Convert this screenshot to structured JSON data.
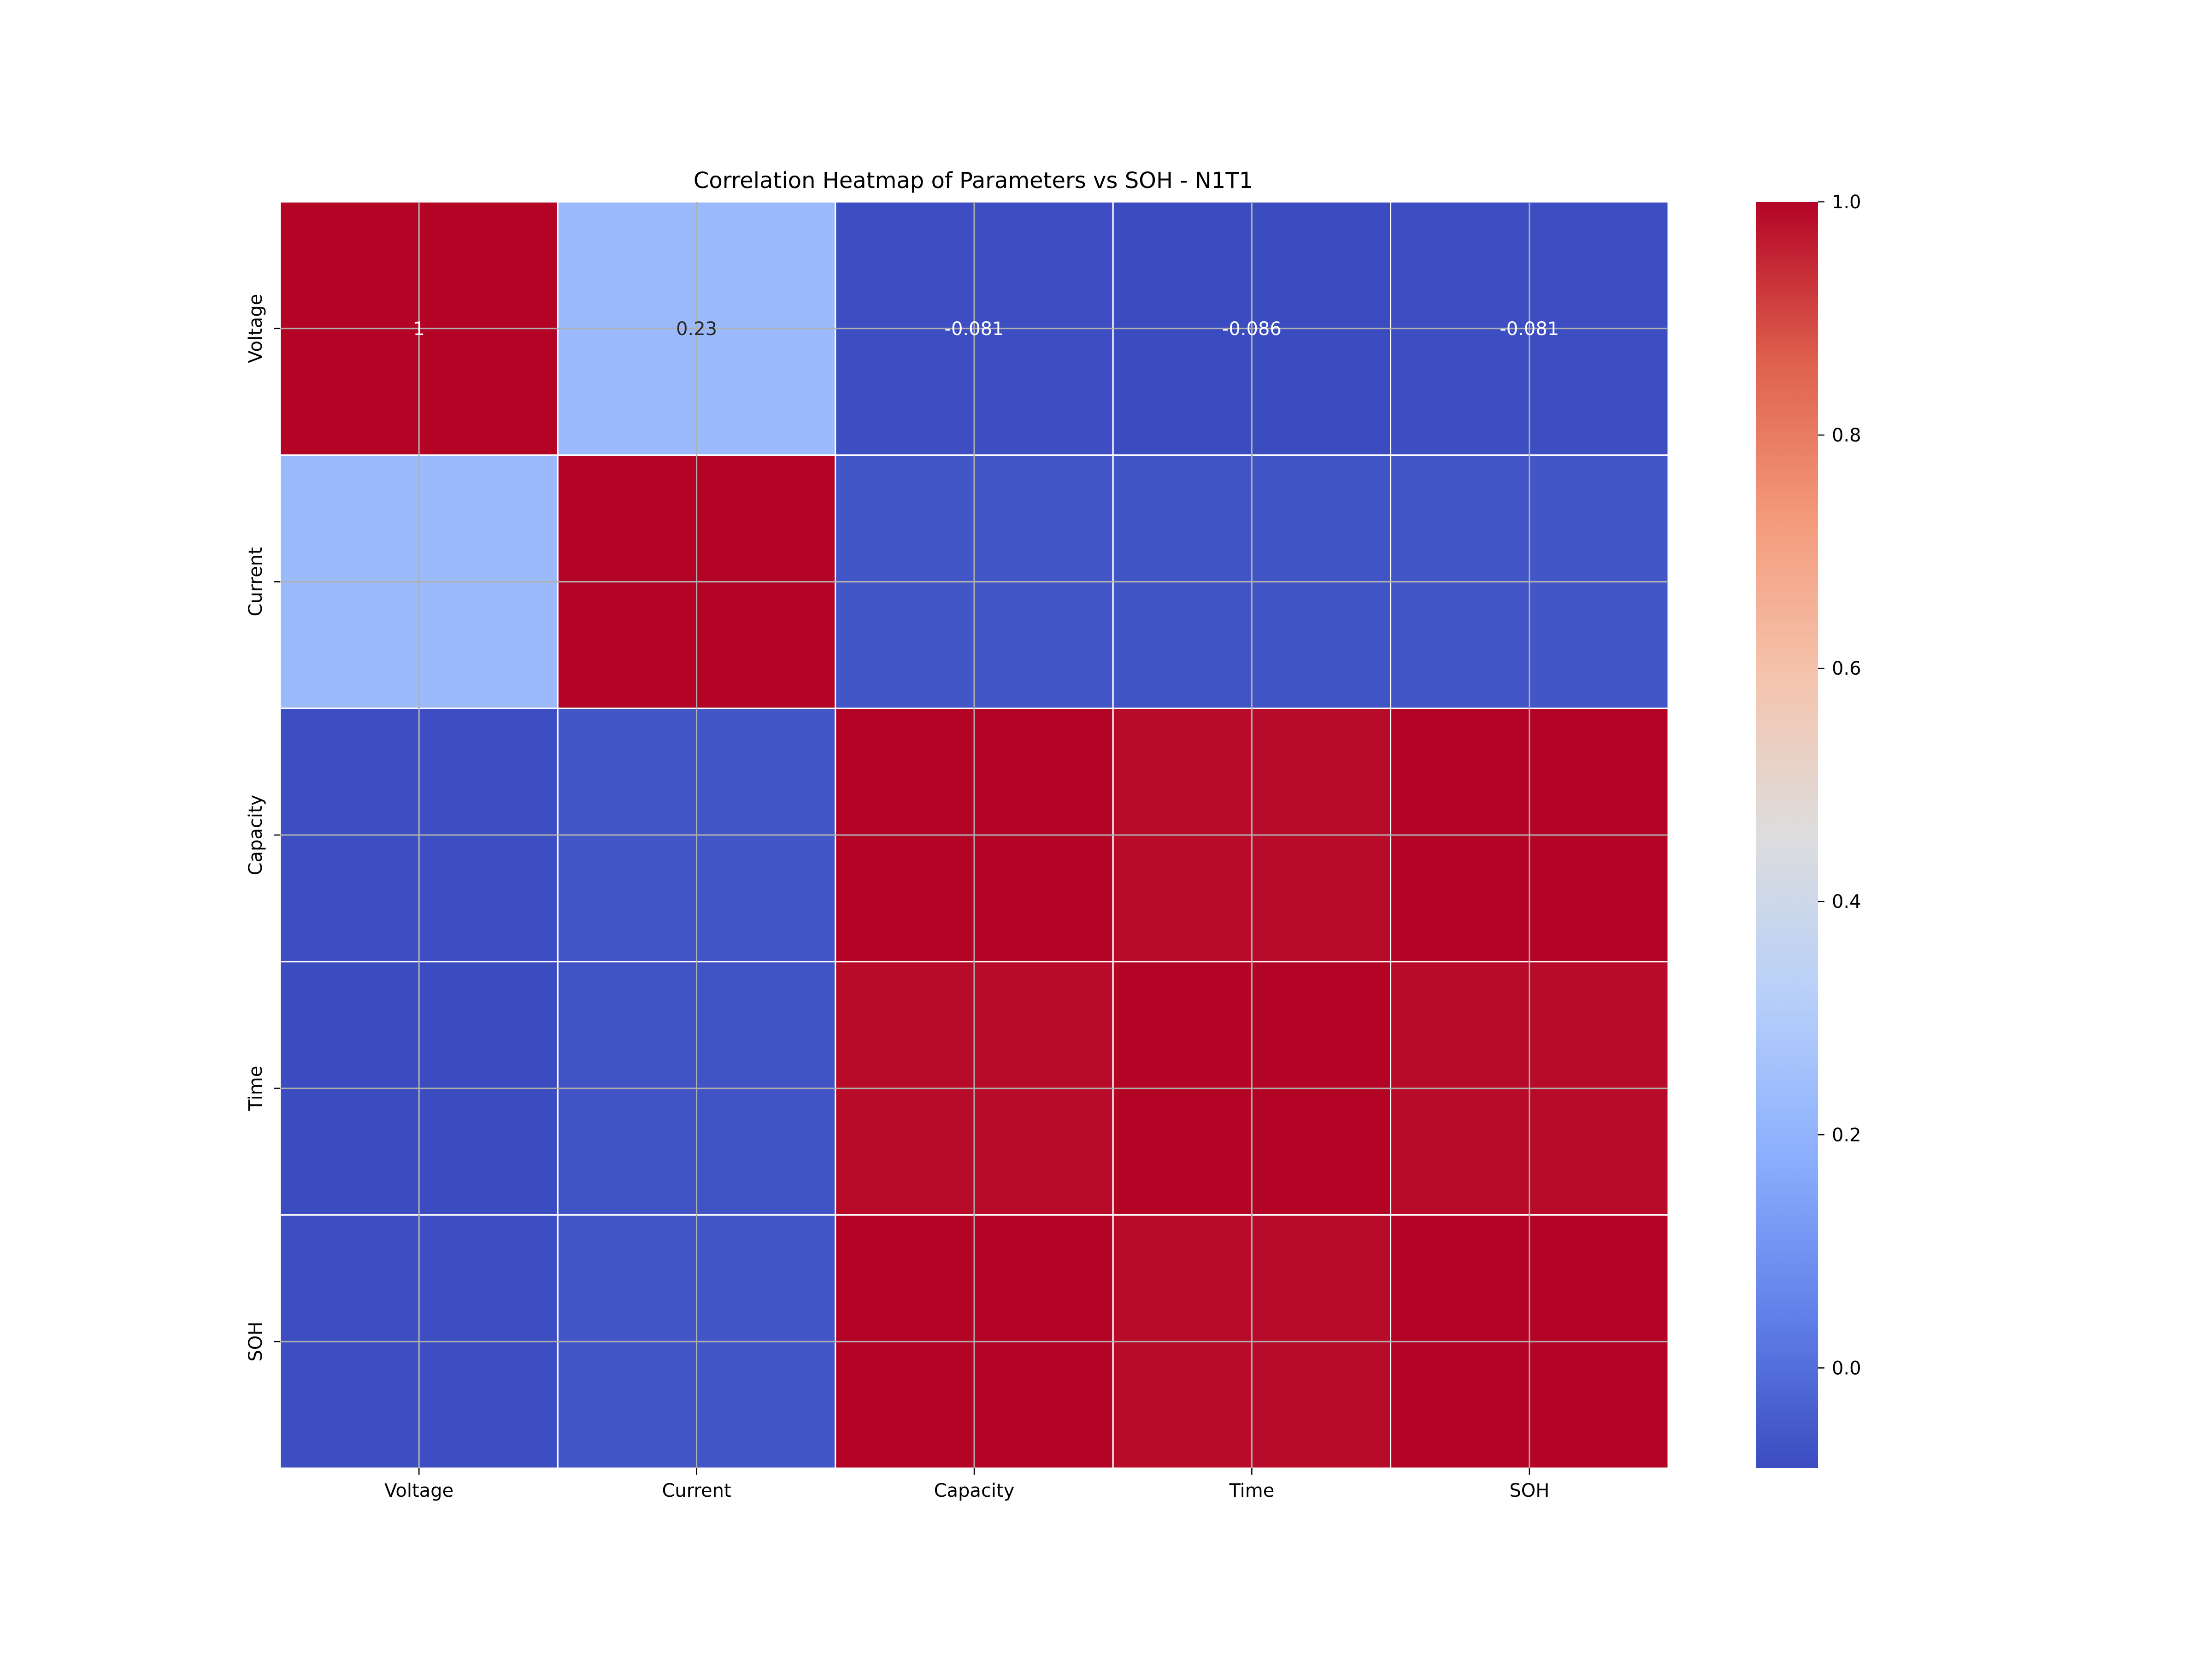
{
  "chart_data": {
    "type": "heatmap",
    "title": "Correlation Heatmap of Parameters vs SOH - N1T1",
    "xlabel": "",
    "ylabel": "",
    "x_categories": [
      "Voltage",
      "Current",
      "Capacity",
      "Time",
      "SOH"
    ],
    "y_categories": [
      "Voltage",
      "Current",
      "Capacity",
      "Time",
      "SOH"
    ],
    "matrix": [
      [
        1.0,
        0.23,
        -0.081,
        -0.086,
        -0.081
      ],
      [
        0.23,
        1.0,
        -0.06,
        -0.065,
        -0.06
      ],
      [
        -0.081,
        -0.06,
        1.0,
        0.99,
        1.0
      ],
      [
        -0.086,
        -0.065,
        0.99,
        1.0,
        0.99
      ],
      [
        -0.081,
        -0.06,
        1.0,
        0.99,
        1.0
      ]
    ],
    "annotations": [
      [
        "1",
        "0.23",
        "-0.081",
        "-0.086",
        "-0.081"
      ],
      [
        "",
        "",
        "",
        "",
        ""
      ],
      [
        "",
        "",
        "",
        "",
        ""
      ],
      [
        "",
        "",
        "",
        "",
        ""
      ],
      [
        "",
        "",
        "",
        "",
        ""
      ]
    ],
    "colormap": "coolwarm",
    "color_range": [
      -0.086,
      1.0
    ],
    "colorbar_ticks": [
      "0.0",
      "0.2",
      "0.4",
      "0.6",
      "0.8",
      "1.0"
    ],
    "colorbar_tick_values": [
      0.0,
      0.2,
      0.4,
      0.6,
      0.8,
      1.0
    ],
    "grid": true,
    "cell_separator_color": "#ffffff",
    "grid_color": "#b0b0b0"
  }
}
